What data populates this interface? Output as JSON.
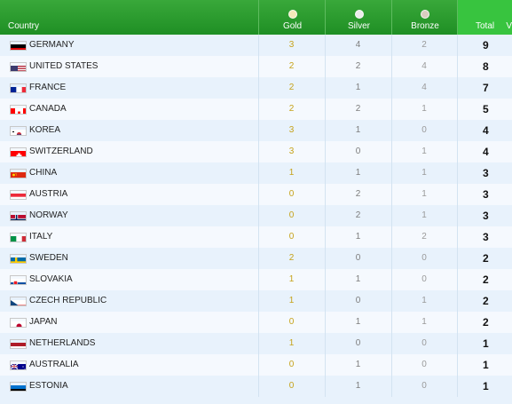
{
  "header": {
    "country": "Country",
    "gold": "Gold",
    "silver": "Silver",
    "bronze": "Bronze",
    "total": "Total",
    "total_more": "V",
    "medal_colors": {
      "gold": "#f3e9b8",
      "silver": "#ececec",
      "bronze": "#d9cdc0"
    }
  },
  "rows": [
    {
      "country": "GERMANY",
      "gold": "3",
      "silver": "4",
      "bronze": "2",
      "total": "9",
      "flag_icon": "germany-flag-icon"
    },
    {
      "country": "UNITED STATES",
      "gold": "2",
      "silver": "2",
      "bronze": "4",
      "total": "8",
      "flag_icon": "usa-flag-icon"
    },
    {
      "country": "FRANCE",
      "gold": "2",
      "silver": "1",
      "bronze": "4",
      "total": "7",
      "flag_icon": "france-flag-icon"
    },
    {
      "country": "CANADA",
      "gold": "2",
      "silver": "2",
      "bronze": "1",
      "total": "5",
      "flag_icon": "canada-flag-icon"
    },
    {
      "country": "KOREA",
      "gold": "3",
      "silver": "1",
      "bronze": "0",
      "total": "4",
      "flag_icon": "korea-flag-icon"
    },
    {
      "country": "SWITZERLAND",
      "gold": "3",
      "silver": "0",
      "bronze": "1",
      "total": "4",
      "flag_icon": "switzerland-flag-icon"
    },
    {
      "country": "CHINA",
      "gold": "1",
      "silver": "1",
      "bronze": "1",
      "total": "3",
      "flag_icon": "china-flag-icon"
    },
    {
      "country": "AUSTRIA",
      "gold": "0",
      "silver": "2",
      "bronze": "1",
      "total": "3",
      "flag_icon": "austria-flag-icon"
    },
    {
      "country": "NORWAY",
      "gold": "0",
      "silver": "2",
      "bronze": "1",
      "total": "3",
      "flag_icon": "norway-flag-icon"
    },
    {
      "country": "ITALY",
      "gold": "0",
      "silver": "1",
      "bronze": "2",
      "total": "3",
      "flag_icon": "italy-flag-icon"
    },
    {
      "country": "SWEDEN",
      "gold": "2",
      "silver": "0",
      "bronze": "0",
      "total": "2",
      "flag_icon": "sweden-flag-icon"
    },
    {
      "country": "SLOVAKIA",
      "gold": "1",
      "silver": "1",
      "bronze": "0",
      "total": "2",
      "flag_icon": "slovakia-flag-icon"
    },
    {
      "country": "CZECH REPUBLIC",
      "gold": "1",
      "silver": "0",
      "bronze": "1",
      "total": "2",
      "flag_icon": "czech-flag-icon"
    },
    {
      "country": "JAPAN",
      "gold": "0",
      "silver": "1",
      "bronze": "1",
      "total": "2",
      "flag_icon": "japan-flag-icon"
    },
    {
      "country": "NETHERLANDS",
      "gold": "1",
      "silver": "0",
      "bronze": "0",
      "total": "1",
      "flag_icon": "netherlands-flag-icon"
    },
    {
      "country": "AUSTRALIA",
      "gold": "0",
      "silver": "1",
      "bronze": "0",
      "total": "1",
      "flag_icon": "australia-flag-icon"
    },
    {
      "country": "ESTONIA",
      "gold": "0",
      "silver": "1",
      "bronze": "0",
      "total": "1",
      "flag_icon": "estonia-flag-icon"
    }
  ]
}
